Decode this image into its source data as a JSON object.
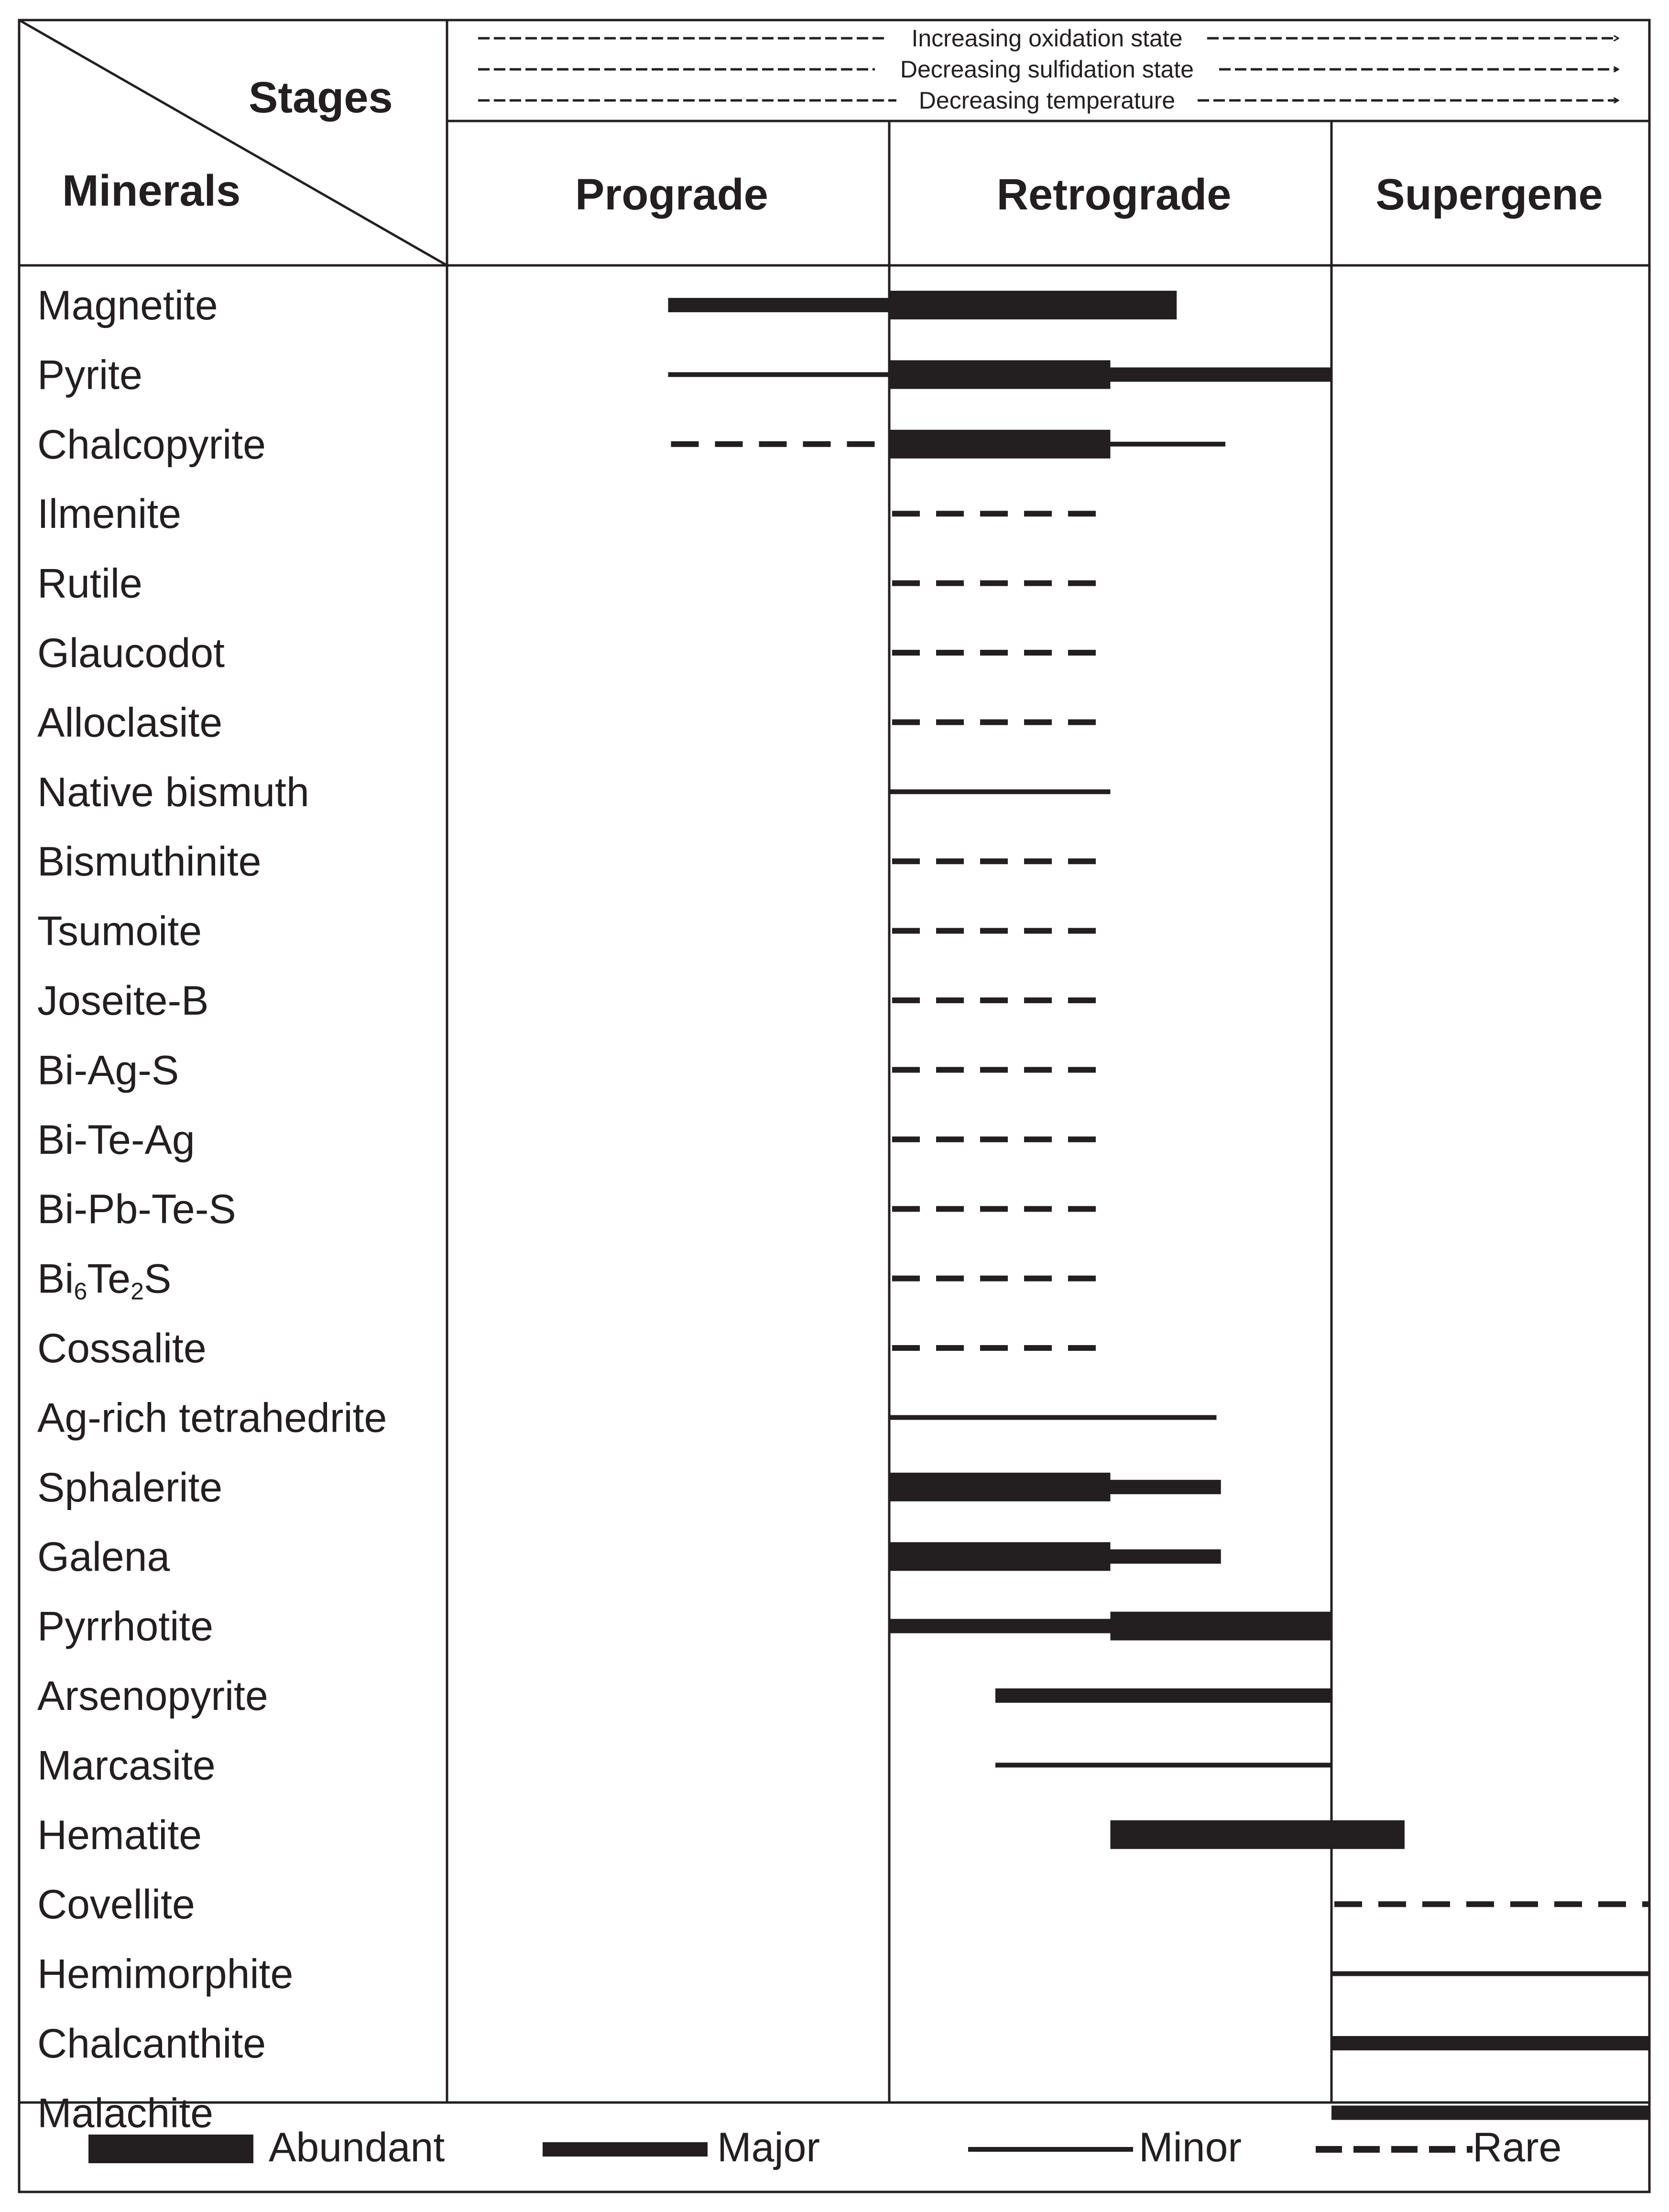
{
  "header": {
    "stages_label": "Stages",
    "minerals_label": "Minerals",
    "trends": [
      "Increasing oxidation state",
      "Decreasing sulfidation state",
      "Decreasing temperature"
    ],
    "stages": [
      "Prograde",
      "Retrograde",
      "Supergene"
    ]
  },
  "legend": {
    "abundant": "Abundant",
    "major": "Major",
    "minor": "Minor",
    "rare": "Rare"
  },
  "colors": {
    "ink": "#231f20",
    "background": "#ffffff"
  },
  "chart_data": {
    "type": "paragenetic-sequence",
    "x_scale_note": "Stage positions: 0 = start of Prograde, 1 = Prograde/Retrograde boundary, 2 = Retrograde/Supergene boundary, 3 = end of Supergene",
    "stages": [
      "Prograde",
      "Retrograde",
      "Supergene"
    ],
    "intensity_levels": [
      "abundant",
      "major",
      "minor",
      "rare"
    ],
    "minerals": [
      {
        "name": "Magnetite",
        "segments": [
          {
            "from": 0.5,
            "to": 1.0,
            "level": "major"
          },
          {
            "from": 1.0,
            "to": 1.65,
            "level": "abundant"
          }
        ]
      },
      {
        "name": "Pyrite",
        "segments": [
          {
            "from": 0.5,
            "to": 1.0,
            "level": "minor"
          },
          {
            "from": 1.0,
            "to": 1.5,
            "level": "abundant"
          },
          {
            "from": 1.5,
            "to": 2.0,
            "level": "major"
          }
        ]
      },
      {
        "name": "Chalcopyrite",
        "segments": [
          {
            "from": 0.5,
            "to": 1.0,
            "level": "rare"
          },
          {
            "from": 1.0,
            "to": 1.5,
            "level": "abundant"
          },
          {
            "from": 1.5,
            "to": 1.76,
            "level": "minor"
          }
        ]
      },
      {
        "name": "Ilmenite",
        "segments": [
          {
            "from": 1.0,
            "to": 1.5,
            "level": "rare"
          }
        ]
      },
      {
        "name": "Rutile",
        "segments": [
          {
            "from": 1.0,
            "to": 1.5,
            "level": "rare"
          }
        ]
      },
      {
        "name": "Glaucodot",
        "segments": [
          {
            "from": 1.0,
            "to": 1.5,
            "level": "rare"
          }
        ]
      },
      {
        "name": "Alloclasite",
        "segments": [
          {
            "from": 1.0,
            "to": 1.5,
            "level": "rare"
          }
        ]
      },
      {
        "name": "Native bismuth",
        "segments": [
          {
            "from": 1.0,
            "to": 1.5,
            "level": "minor"
          }
        ]
      },
      {
        "name": "Bismuthinite",
        "segments": [
          {
            "from": 1.0,
            "to": 1.5,
            "level": "rare"
          }
        ]
      },
      {
        "name": "Tsumoite",
        "segments": [
          {
            "from": 1.0,
            "to": 1.5,
            "level": "rare"
          }
        ]
      },
      {
        "name": "Joseite-B",
        "segments": [
          {
            "from": 1.0,
            "to": 1.5,
            "level": "rare"
          }
        ]
      },
      {
        "name": "Bi-Ag-S",
        "segments": [
          {
            "from": 1.0,
            "to": 1.5,
            "level": "rare"
          }
        ]
      },
      {
        "name": "Bi-Te-Ag",
        "segments": [
          {
            "from": 1.0,
            "to": 1.5,
            "level": "rare"
          }
        ]
      },
      {
        "name": "Bi-Pb-Te-S",
        "segments": [
          {
            "from": 1.0,
            "to": 1.5,
            "level": "rare"
          }
        ]
      },
      {
        "name": "Bi6Te2S",
        "label_parts": [
          "Bi",
          "6",
          "Te",
          "2",
          "S"
        ],
        "segments": [
          {
            "from": 1.0,
            "to": 1.5,
            "level": "rare"
          }
        ]
      },
      {
        "name": "Cossalite",
        "segments": [
          {
            "from": 1.0,
            "to": 1.5,
            "level": "rare"
          }
        ]
      },
      {
        "name": "Ag-rich tetrahedrite",
        "segments": [
          {
            "from": 1.0,
            "to": 1.74,
            "level": "minor"
          }
        ]
      },
      {
        "name": "Sphalerite",
        "segments": [
          {
            "from": 1.0,
            "to": 1.5,
            "level": "abundant"
          },
          {
            "from": 1.5,
            "to": 1.75,
            "level": "major"
          }
        ]
      },
      {
        "name": "Galena",
        "segments": [
          {
            "from": 1.0,
            "to": 1.5,
            "level": "abundant"
          },
          {
            "from": 1.5,
            "to": 1.75,
            "level": "major"
          }
        ]
      },
      {
        "name": "Pyrrhotite",
        "segments": [
          {
            "from": 1.0,
            "to": 1.5,
            "level": "major"
          },
          {
            "from": 1.5,
            "to": 2.0,
            "level": "abundant"
          }
        ]
      },
      {
        "name": "Arsenopyrite",
        "segments": [
          {
            "from": 1.24,
            "to": 2.0,
            "level": "major"
          }
        ]
      },
      {
        "name": "Marcasite",
        "segments": [
          {
            "from": 1.24,
            "to": 2.0,
            "level": "minor"
          }
        ]
      },
      {
        "name": "Hematite",
        "segments": [
          {
            "from": 1.5,
            "to": 2.23,
            "level": "abundant"
          }
        ]
      },
      {
        "name": "Covellite",
        "segments": [
          {
            "from": 2.0,
            "to": 3.0,
            "level": "rare"
          }
        ]
      },
      {
        "name": "Hemimorphite",
        "segments": [
          {
            "from": 2.0,
            "to": 3.0,
            "level": "minor"
          }
        ]
      },
      {
        "name": "Chalcanthite",
        "segments": [
          {
            "from": 2.0,
            "to": 3.0,
            "level": "major"
          }
        ]
      },
      {
        "name": "Malachite",
        "segments": [
          {
            "from": 2.0,
            "to": 3.0,
            "level": "major"
          }
        ]
      }
    ]
  }
}
